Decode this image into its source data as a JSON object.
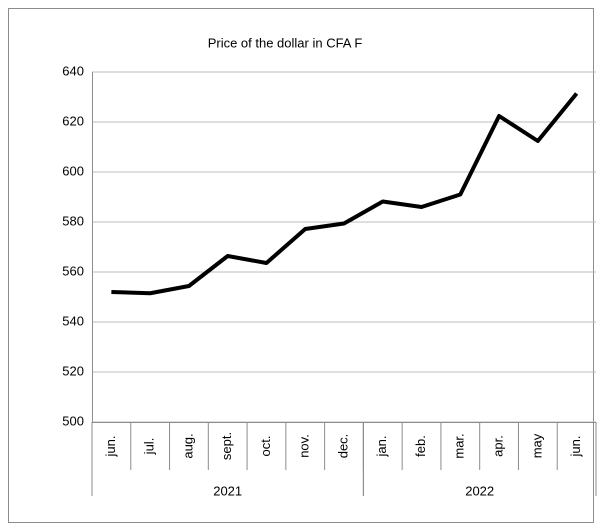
{
  "chart_data": {
    "type": "line",
    "title": "Price of the dollar in CFA F",
    "categories": [
      "jun.",
      "jul.",
      "aug.",
      "sept.",
      "oct.",
      "nov.",
      "dec.",
      "jan.",
      "feb.",
      "mar.",
      "apr.",
      "may",
      "jun."
    ],
    "category_groups": [
      {
        "label": "2021",
        "from": 0,
        "to": 6
      },
      {
        "label": "2022",
        "from": 7,
        "to": 12
      }
    ],
    "values": [
      552,
      551.5,
      554.4,
      566.4,
      563.6,
      577.2,
      579.4,
      588.2,
      586,
      591,
      622.4,
      612.4,
      631.4
    ],
    "color": "#000000",
    "ylim": [
      500,
      640
    ],
    "yticks": [
      500,
      520,
      540,
      560,
      580,
      600,
      620,
      640
    ],
    "grid": true
  }
}
